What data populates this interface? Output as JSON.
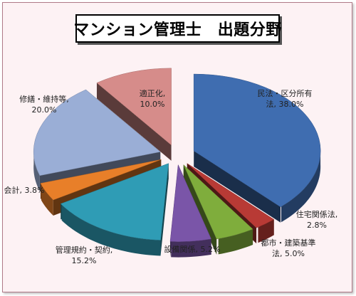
{
  "chart_data": {
    "type": "pie",
    "title": "マンション管理士　出題分野",
    "slices": [
      {
        "name": "民法・区分所有法",
        "label_lines": [
          "民法・区分所有",
          "法, 38.0%"
        ],
        "value": 38.0,
        "color": "#3f6db0"
      },
      {
        "name": "住宅関係法",
        "label_lines": [
          "住宅関係法,",
          "2.8%"
        ],
        "value": 2.8,
        "color": "#b83a35"
      },
      {
        "name": "都市・建築基準法",
        "label_lines": [
          "都市・建築基準",
          "法, 5.0%"
        ],
        "value": 5.0,
        "color": "#7fad3c"
      },
      {
        "name": "設備関係",
        "label_lines": [
          "設備関係, 5.2%"
        ],
        "value": 5.2,
        "color": "#7a55a8"
      },
      {
        "name": "管理規約・契約",
        "label_lines": [
          "管理規約・契約,",
          "15.2%"
        ],
        "value": 15.2,
        "color": "#2f9cb5"
      },
      {
        "name": "会計",
        "label_lines": [
          "会計, 3.8%"
        ],
        "value": 3.8,
        "color": "#e87f29"
      },
      {
        "name": "修繕・維持等",
        "label_lines": [
          "修繕・維持等,",
          "20.0%"
        ],
        "value": 20.0,
        "color": "#9aaed6"
      },
      {
        "name": "適正化",
        "label_lines": [
          "適正化,",
          "10.0%"
        ],
        "value": 10.0,
        "color": "#d68c8a"
      }
    ]
  }
}
